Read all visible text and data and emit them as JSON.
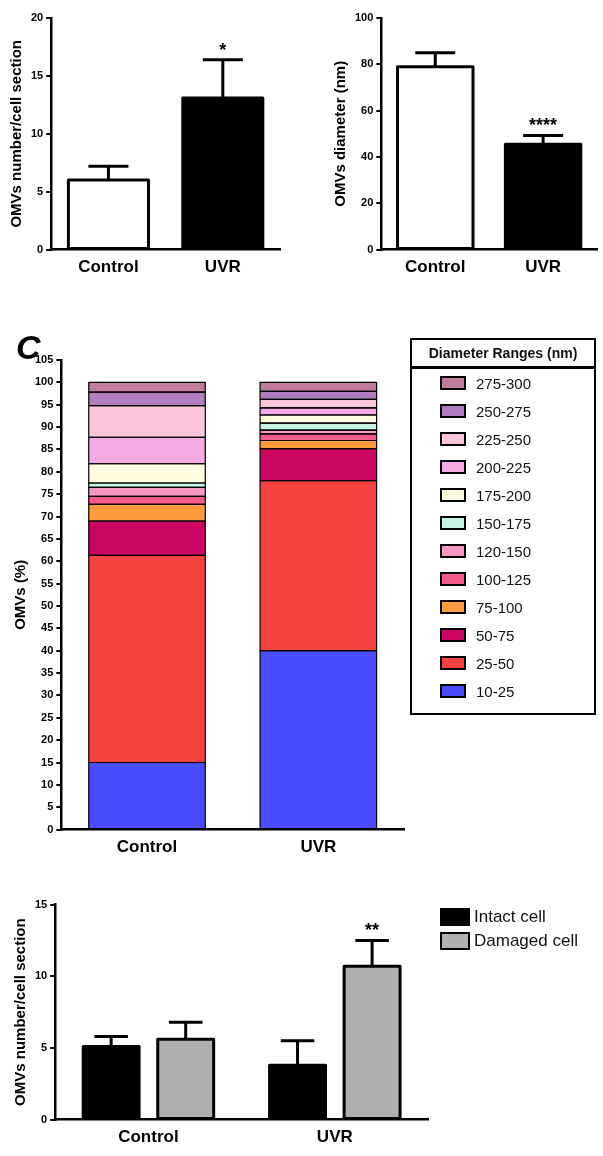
{
  "chart_data": [
    {
      "type": "bar",
      "categories": [
        "Control",
        "UVR"
      ],
      "ylabel": "OMVs number/cell section",
      "ylim": [
        0,
        20
      ],
      "yticks": [
        0,
        5,
        10,
        15,
        20
      ],
      "values": [
        6,
        13.1
      ],
      "colors": [
        "#ffffff",
        "#000000"
      ],
      "errors": [
        [
          6,
          7.2
        ],
        [
          13.1,
          16.4
        ]
      ],
      "annotations": [
        {
          "text": "*",
          "x": "UVR",
          "y": 16.4
        }
      ]
    },
    {
      "type": "bar",
      "categories": [
        "Control",
        "UVR"
      ],
      "ylabel": "OMVs diameter (nm)",
      "ylim": [
        0,
        100
      ],
      "yticks": [
        0,
        20,
        40,
        60,
        80,
        100
      ],
      "values": [
        79,
        45.5
      ],
      "colors": [
        "#ffffff",
        "#000000"
      ],
      "errors": [
        [
          79,
          85
        ],
        [
          45.5,
          49.3
        ]
      ],
      "annotations": [
        {
          "text": "****",
          "x": "UVR",
          "y": 49.3
        }
      ]
    },
    {
      "type": "bar",
      "stacked": true,
      "categories": [
        "Control",
        "UVR"
      ],
      "ylabel": "OMVs (%)",
      "ylim": [
        0,
        105
      ],
      "yticks": [
        0,
        5,
        10,
        15,
        20,
        25,
        30,
        35,
        40,
        45,
        50,
        55,
        60,
        65,
        70,
        75,
        80,
        85,
        90,
        95,
        100,
        105
      ],
      "legend": "right",
      "legend_title": "Diameter Ranges (nm)",
      "annotations": [
        "C"
      ],
      "series": [
        {
          "name": "10-25",
          "color": "#4b4bff",
          "values": [
            15,
            40
          ]
        },
        {
          "name": "25-50",
          "color": "#f74141",
          "values": [
            46.3,
            38
          ]
        },
        {
          "name": "50-75",
          "color": "#cc0660",
          "values": [
            7.7,
            7.2
          ]
        },
        {
          "name": "75-100",
          "color": "#fd9b3d",
          "values": [
            3.7,
            1.8
          ]
        },
        {
          "name": "100-125",
          "color": "#f45a8a",
          "values": [
            1.8,
            1.5
          ]
        },
        {
          "name": "120-150",
          "color": "#f797c3",
          "values": [
            2,
            0.8
          ]
        },
        {
          "name": "150-175",
          "color": "#c6f5e4",
          "values": [
            1,
            1.6
          ]
        },
        {
          "name": "175-200",
          "color": "#fffce0",
          "values": [
            4.3,
            1.8
          ]
        },
        {
          "name": "200-225",
          "color": "#f5aae3",
          "values": [
            5.9,
            1.6
          ]
        },
        {
          "name": "225-250",
          "color": "#fbc6dc",
          "values": [
            7.1,
            1.9
          ]
        },
        {
          "name": "250-275",
          "color": "#b07ec0",
          "values": [
            3,
            1.8
          ]
        },
        {
          "name": "275-300",
          "color": "#c07c9c",
          "values": [
            2.2,
            2
          ]
        }
      ]
    },
    {
      "type": "bar",
      "categories": [
        "Control",
        "UVR"
      ],
      "ylabel": "OMVs number/cell section",
      "ylim": [
        0,
        15
      ],
      "yticks": [
        0,
        5,
        10,
        15
      ],
      "legend": "top right",
      "annotations": [
        "**"
      ],
      "series": [
        {
          "name": "Intact cell",
          "color": "#000000",
          "values": [
            5.1,
            3.8
          ],
          "errors": [
            [
              5.1,
              5.8
            ],
            [
              3.8,
              5.5
            ]
          ]
        },
        {
          "name": "Damaged cell",
          "color": "#b0b0b0",
          "values": [
            5.6,
            10.7
          ],
          "errors": [
            [
              5.6,
              6.8
            ],
            [
              10.7,
              12.5
            ]
          ]
        }
      ]
    }
  ]
}
